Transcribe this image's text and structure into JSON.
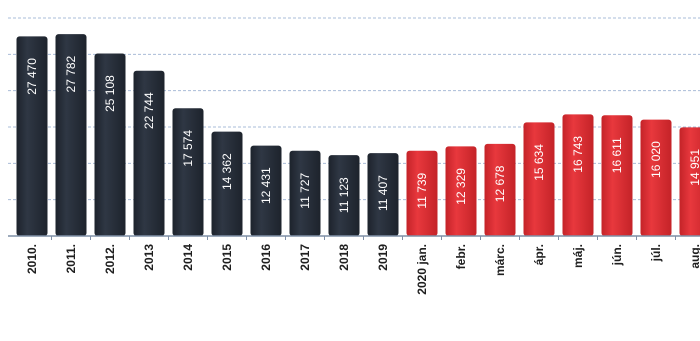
{
  "chart_data": {
    "type": "bar",
    "title": "",
    "xlabel": "",
    "ylabel": "",
    "ylim": [
      0,
      30000
    ],
    "grid": true,
    "legend": "none",
    "categories": [
      "2010.",
      "2011.",
      "2012.",
      "2013",
      "2014",
      "2015",
      "2016",
      "2017",
      "2018",
      "2019",
      "2020 jan.",
      "febr.",
      "márc.",
      "ápr.",
      "máj.",
      "jún.",
      "júl.",
      "aug."
    ],
    "series": [
      {
        "values": [
          27470,
          27782,
          25108,
          22744,
          17574,
          14362,
          12431,
          11727,
          11123,
          11407,
          11739,
          12329,
          12678,
          15634,
          16743,
          16611,
          16020,
          14951
        ],
        "labels": [
          "27 470",
          "27 782",
          "25 108",
          "22 744",
          "17 574",
          "14 362",
          "12 431",
          "11 727",
          "11 123",
          "11 407",
          "11 739",
          "12 329",
          "12 678",
          "15 634",
          "16 743",
          "16 611",
          "16 020",
          "14 951"
        ]
      }
    ],
    "colors": {
      "annual_bars": "#2f3744",
      "monthly_bars": "#e8383d",
      "gridline": "#a9bcd8",
      "baseline": "#7f8fa6"
    }
  }
}
